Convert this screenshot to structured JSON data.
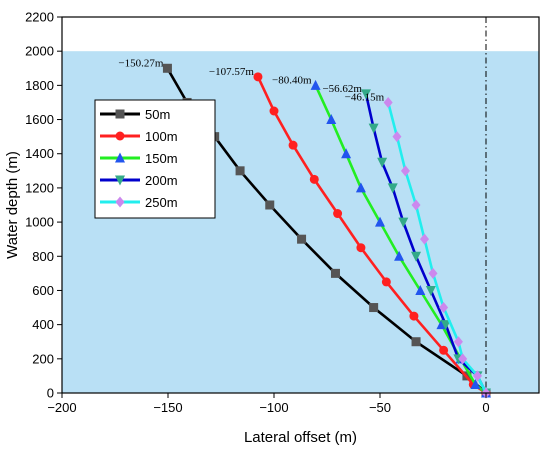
{
  "chart_data": {
    "type": "line",
    "xlabel": "Lateral offset (m)",
    "ylabel": "Water depth (m)",
    "xlim": [
      -200,
      25
    ],
    "ylim": [
      0,
      2200
    ],
    "xticks": [
      -200,
      -150,
      -100,
      -50,
      0
    ],
    "yticks": [
      0,
      200,
      400,
      600,
      800,
      1000,
      1200,
      1400,
      1600,
      1800,
      2000,
      2200
    ],
    "water_surface_depth": 2000,
    "reference_line_x": 0,
    "background_color": "#b9e0f5",
    "legend_position": "upper-left",
    "series": [
      {
        "name": "50m",
        "color": "#000000",
        "marker": "square",
        "marker_color": "#555555",
        "points": [
          [
            0,
            0
          ],
          [
            -9,
            100
          ],
          [
            -33,
            300
          ],
          [
            -53,
            500
          ],
          [
            -71,
            700
          ],
          [
            -87,
            900
          ],
          [
            -102,
            1100
          ],
          [
            -116,
            1300
          ],
          [
            -128,
            1500
          ],
          [
            -141,
            1700
          ],
          [
            -150.27,
            1900
          ]
        ]
      },
      {
        "name": "100m",
        "color": "#ff2020",
        "marker": "circle",
        "marker_color": "#ff2020",
        "points": [
          [
            0,
            0
          ],
          [
            -6,
            50
          ],
          [
            -20,
            250
          ],
          [
            -34,
            450
          ],
          [
            -47,
            650
          ],
          [
            -59,
            850
          ],
          [
            -70,
            1050
          ],
          [
            -81,
            1250
          ],
          [
            -91,
            1450
          ],
          [
            -100,
            1650
          ],
          [
            -107.57,
            1850
          ]
        ]
      },
      {
        "name": "150m",
        "color": "#22ee22",
        "marker": "triangle-up",
        "marker_color": "#2255ee",
        "points": [
          [
            0,
            0
          ],
          [
            -5,
            50
          ],
          [
            -12,
            200
          ],
          [
            -21,
            400
          ],
          [
            -31,
            600
          ],
          [
            -41,
            800
          ],
          [
            -50,
            1000
          ],
          [
            -59,
            1200
          ],
          [
            -66,
            1400
          ],
          [
            -73,
            1600
          ],
          [
            -80.4,
            1800
          ]
        ]
      },
      {
        "name": "200m",
        "color": "#0000cc",
        "marker": "triangle-down",
        "marker_color": "#33aa88",
        "points": [
          [
            0,
            0
          ],
          [
            -4,
            100
          ],
          [
            -13,
            200
          ],
          [
            -19,
            400
          ],
          [
            -26,
            600
          ],
          [
            -33,
            800
          ],
          [
            -39,
            1000
          ],
          [
            -44,
            1200
          ],
          [
            -49,
            1350
          ],
          [
            -53,
            1550
          ],
          [
            -56.62,
            1750
          ]
        ]
      },
      {
        "name": "250m",
        "color": "#22eeee",
        "marker": "diamond",
        "marker_color": "#cc88ee",
        "points": [
          [
            0,
            0
          ],
          [
            -4,
            100
          ],
          [
            -11,
            200
          ],
          [
            -13,
            300
          ],
          [
            -20,
            500
          ],
          [
            -25,
            700
          ],
          [
            -29,
            900
          ],
          [
            -33,
            1100
          ],
          [
            -38,
            1300
          ],
          [
            -42,
            1500
          ],
          [
            -46.15,
            1700
          ]
        ]
      }
    ],
    "annotations": [
      {
        "text": "-150.27m",
        "x": -150.27,
        "y": 1900
      },
      {
        "text": "-107.57m",
        "x": -107.57,
        "y": 1850
      },
      {
        "text": "-80.40m",
        "x": -80.4,
        "y": 1800
      },
      {
        "text": "-56.62m",
        "x": -56.62,
        "y": 1750
      },
      {
        "text": "-46.15m",
        "x": -46.15,
        "y": 1700
      }
    ]
  }
}
